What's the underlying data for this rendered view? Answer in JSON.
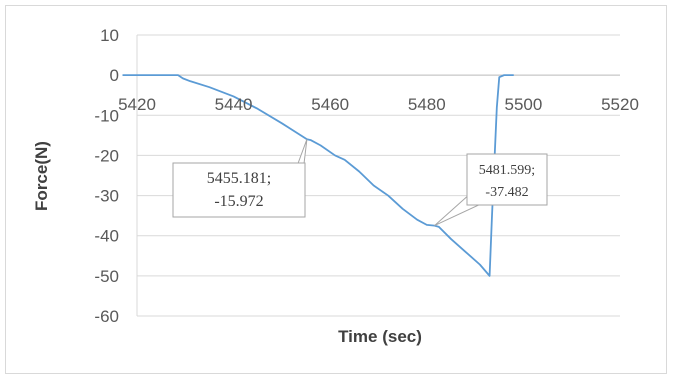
{
  "chart_data": {
    "type": "line",
    "title": "",
    "xlabel": "Time (sec)",
    "ylabel": "Force(N)",
    "xlim": [
      5420,
      5520
    ],
    "ylim": [
      -60,
      10
    ],
    "x_ticks": [
      5420,
      5440,
      5460,
      5480,
      5500,
      5520
    ],
    "y_ticks": [
      10,
      0,
      -10,
      -20,
      -30,
      -40,
      -50,
      -60
    ],
    "grid": "horizontal",
    "legend": "none",
    "series": [
      {
        "color": "#5b9bd5",
        "x": [
          5417,
          5428.5,
          5429.5,
          5431,
          5435,
          5440,
          5445,
          5450,
          5455.181,
          5456,
          5458,
          5461,
          5463,
          5466,
          5469,
          5472,
          5475,
          5478,
          5480,
          5481.599,
          5482.5,
          5485,
          5488,
          5491,
          5493,
          5493.5,
          5494.5,
          5495,
          5496,
          5498
        ],
        "y": [
          0,
          0,
          -0.8,
          -1.5,
          -3,
          -5.3,
          -8.4,
          -12,
          -15.972,
          -16.2,
          -17.5,
          -20,
          -21.1,
          -24,
          -27.5,
          -30,
          -33.3,
          -36,
          -37.3,
          -37.482,
          -37.8,
          -40.8,
          -44,
          -47.2,
          -50,
          -35,
          -8,
          -0.5,
          0,
          0
        ]
      }
    ],
    "annotations": [
      {
        "line1": "5455.181;",
        "line2": "-15.972",
        "x": 5455.181,
        "y": -15.972
      },
      {
        "line1": "5481.599;",
        "line2": "-37.482",
        "x": 5481.599,
        "y": -37.482
      }
    ]
  }
}
